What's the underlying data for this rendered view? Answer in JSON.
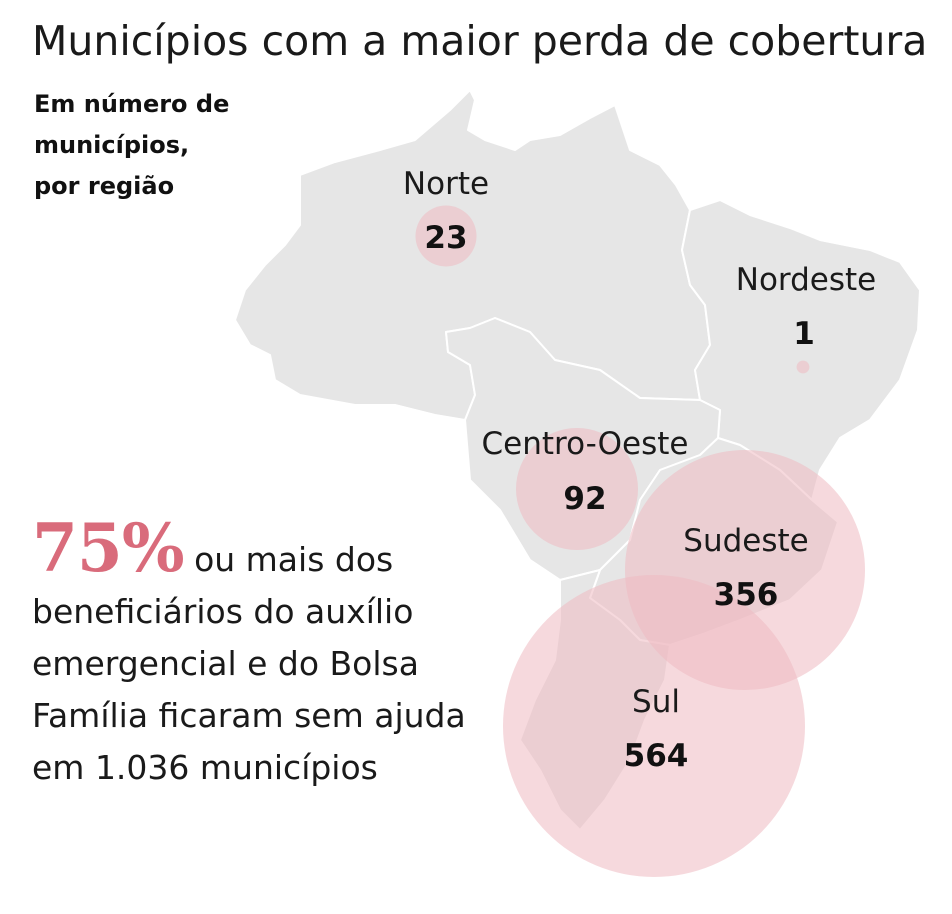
{
  "title": "Municípios com a maior perda de cobertura",
  "subtitle": {
    "line1": "Em número de",
    "line2": "municípios,",
    "line3": "por região"
  },
  "colors": {
    "map_fill": "#e6e6e6",
    "map_border": "#ffffff",
    "bubble_fill": "#eeb9c1",
    "bubble_fill_opacity": 0.55,
    "accent": "#d96b7b"
  },
  "chart_data": {
    "type": "proportional-symbol-map",
    "unit": "municípios",
    "regions": [
      {
        "name": "Norte",
        "value": 23
      },
      {
        "name": "Nordeste",
        "value": 1
      },
      {
        "name": "Centro-Oeste",
        "value": 92
      },
      {
        "name": "Sudeste",
        "value": 356
      },
      {
        "name": "Sul",
        "value": 564
      }
    ]
  },
  "highlight": {
    "percent": "75%",
    "text": "ou mais dos beneficiários do auxílio emergencial e do Bolsa Família ficaram sem ajuda em 1.036 municípios"
  }
}
